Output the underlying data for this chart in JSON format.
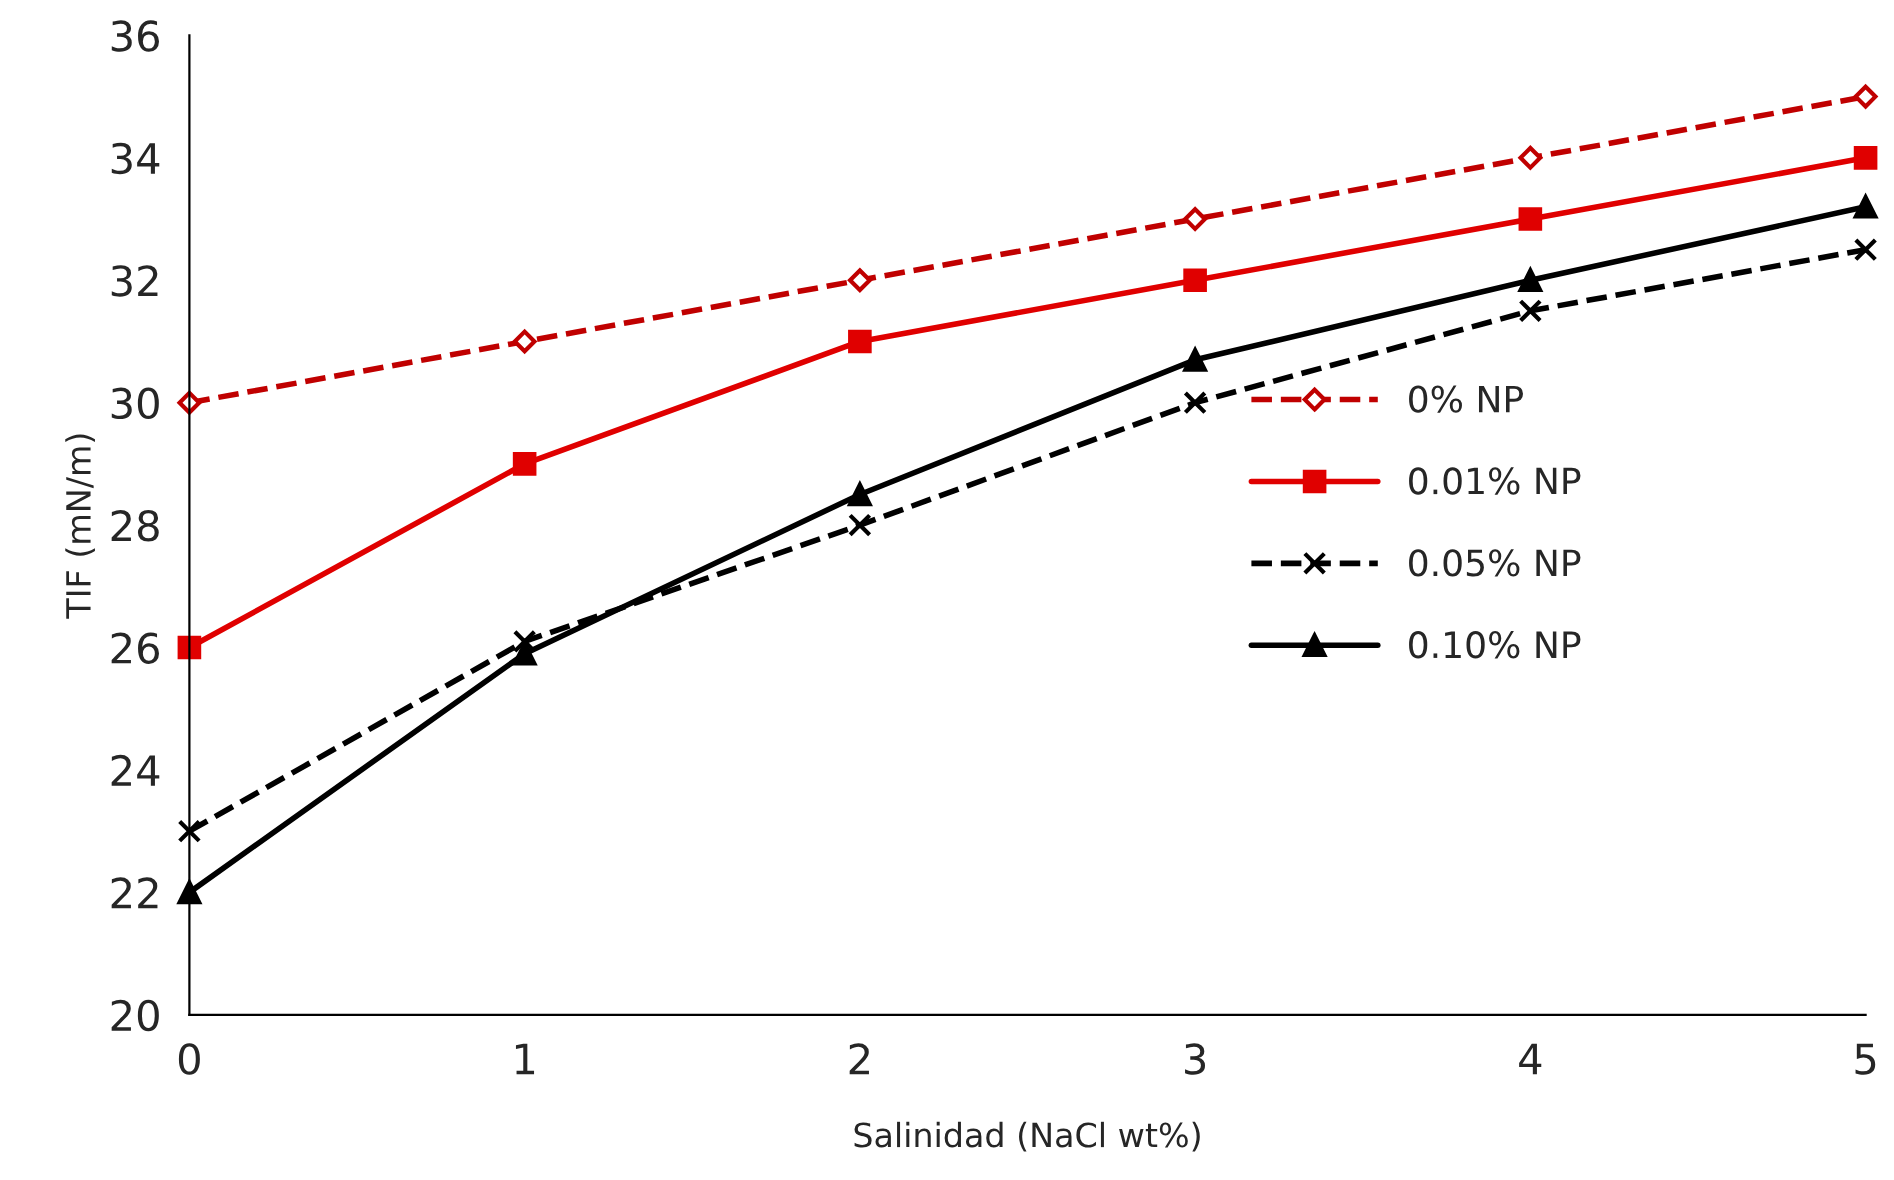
{
  "chart_data": {
    "type": "line",
    "xlabel": "Salinidad (NaCl wt%)",
    "ylabel": "TIF (mN/m)",
    "x": [
      0,
      1,
      2,
      3,
      4,
      5
    ],
    "xlim": [
      0,
      5
    ],
    "xticks": [
      0,
      1,
      2,
      3,
      4,
      5
    ],
    "ylim": [
      20,
      36
    ],
    "yticks": [
      20,
      22,
      24,
      26,
      28,
      30,
      32,
      34,
      36
    ],
    "grid": false,
    "legend": "right",
    "series": [
      {
        "name": "0% NP",
        "color": "#c00000",
        "marker": "diamond",
        "line_style": "dashed",
        "values": [
          30,
          31,
          32,
          33,
          34,
          35
        ]
      },
      {
        "name": "0.01% NP",
        "color": "#e00000",
        "marker": "square",
        "line_style": "solid",
        "values": [
          26,
          29,
          31,
          32,
          33,
          34
        ]
      },
      {
        "name": "0.05% NP",
        "color": "#000000",
        "marker": "cross",
        "line_style": "dashed",
        "values": [
          23,
          26.1,
          28,
          30,
          31.5,
          32.5
        ]
      },
      {
        "name": "0.10% NP",
        "color": "#000000",
        "marker": "triangle",
        "line_style": "solid",
        "values": [
          22,
          25.9,
          28.5,
          30.7,
          32,
          33.2
        ]
      }
    ]
  }
}
